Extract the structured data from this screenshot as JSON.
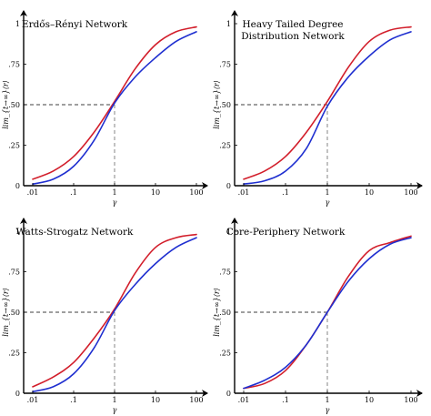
{
  "colors": {
    "series_red": "#d21e2b",
    "series_blue": "#1f2fd0",
    "axis": "#000000",
    "guide": "#666666"
  },
  "shared_axes": {
    "xlabel": "γ",
    "ylabel": "lim_{t→∞}⟨r⟩",
    "x_ticks": [
      {
        "value": 0.01,
        "label": ".01"
      },
      {
        "value": 0.1,
        "label": ".1"
      },
      {
        "value": 1,
        "label": "1"
      },
      {
        "value": 10,
        "label": "10"
      },
      {
        "value": 100,
        "label": "100"
      }
    ],
    "y_ticks": [
      {
        "value": 0,
        "label": "0"
      },
      {
        "value": 0.25,
        "label": ".25"
      },
      {
        "value": 0.5,
        "label": ".50"
      },
      {
        "value": 0.75,
        "label": ".75"
      },
      {
        "value": 1,
        "label": "1"
      }
    ]
  },
  "chart_data": [
    {
      "type": "line",
      "title_lines": [
        "Erdős–Rényi Network"
      ],
      "xscale": "log",
      "xlim": [
        0.01,
        100
      ],
      "ylim": [
        0,
        1
      ],
      "grid": false,
      "guides": {
        "x": 1,
        "y": 0.5
      },
      "series": [
        {
          "color": "red",
          "x": [
            0.01,
            0.0316,
            0.1,
            0.316,
            1,
            3.16,
            10,
            31.6,
            100
          ],
          "y": [
            0.04,
            0.09,
            0.18,
            0.33,
            0.52,
            0.72,
            0.87,
            0.95,
            0.98
          ]
        },
        {
          "color": "blue",
          "x": [
            0.01,
            0.0316,
            0.1,
            0.316,
            1,
            3.16,
            10,
            31.6,
            100
          ],
          "y": [
            0.01,
            0.04,
            0.12,
            0.28,
            0.51,
            0.67,
            0.79,
            0.89,
            0.95
          ]
        }
      ]
    },
    {
      "type": "line",
      "title_lines": [
        "Heavy Tailed Degree",
        "Distribution Network"
      ],
      "xscale": "log",
      "xlim": [
        0.01,
        100
      ],
      "ylim": [
        0,
        1
      ],
      "grid": false,
      "guides": {
        "x": 1,
        "y": 0.5
      },
      "series": [
        {
          "color": "red",
          "x": [
            0.01,
            0.0316,
            0.1,
            0.316,
            1,
            3.16,
            10,
            31.6,
            100
          ],
          "y": [
            0.04,
            0.09,
            0.18,
            0.33,
            0.52,
            0.73,
            0.89,
            0.96,
            0.98
          ]
        },
        {
          "color": "blue",
          "x": [
            0.01,
            0.0316,
            0.1,
            0.316,
            1,
            3.16,
            10,
            31.6,
            100
          ],
          "y": [
            0.01,
            0.03,
            0.09,
            0.23,
            0.49,
            0.67,
            0.8,
            0.9,
            0.95
          ]
        }
      ]
    },
    {
      "type": "line",
      "title_lines": [
        "Watts-Strogatz Network"
      ],
      "xscale": "log",
      "xlim": [
        0.01,
        100
      ],
      "ylim": [
        0,
        1
      ],
      "grid": false,
      "guides": {
        "x": 1,
        "y": 0.5
      },
      "series": [
        {
          "color": "red",
          "x": [
            0.01,
            0.0316,
            0.1,
            0.316,
            1,
            3.16,
            10,
            31.6,
            100
          ],
          "y": [
            0.04,
            0.1,
            0.19,
            0.34,
            0.52,
            0.74,
            0.9,
            0.96,
            0.98
          ]
        },
        {
          "color": "blue",
          "x": [
            0.01,
            0.0316,
            0.1,
            0.316,
            1,
            3.16,
            10,
            31.6,
            100
          ],
          "y": [
            0.01,
            0.04,
            0.12,
            0.28,
            0.51,
            0.67,
            0.8,
            0.9,
            0.96
          ]
        }
      ]
    },
    {
      "type": "line",
      "title_lines": [
        "Core-Periphery Network"
      ],
      "xscale": "log",
      "xlim": [
        0.01,
        100
      ],
      "ylim": [
        0,
        1
      ],
      "grid": false,
      "guides": {
        "x": 1,
        "y": 0.5
      },
      "series": [
        {
          "color": "red",
          "x": [
            0.01,
            0.0316,
            0.1,
            0.316,
            1,
            3.16,
            10,
            31.6,
            100
          ],
          "y": [
            0.03,
            0.06,
            0.14,
            0.3,
            0.5,
            0.72,
            0.88,
            0.93,
            0.97
          ]
        },
        {
          "color": "blue",
          "x": [
            0.01,
            0.0316,
            0.1,
            0.316,
            1,
            3.16,
            10,
            31.6,
            100
          ],
          "y": [
            0.03,
            0.08,
            0.16,
            0.3,
            0.5,
            0.69,
            0.83,
            0.92,
            0.96
          ]
        }
      ]
    }
  ]
}
